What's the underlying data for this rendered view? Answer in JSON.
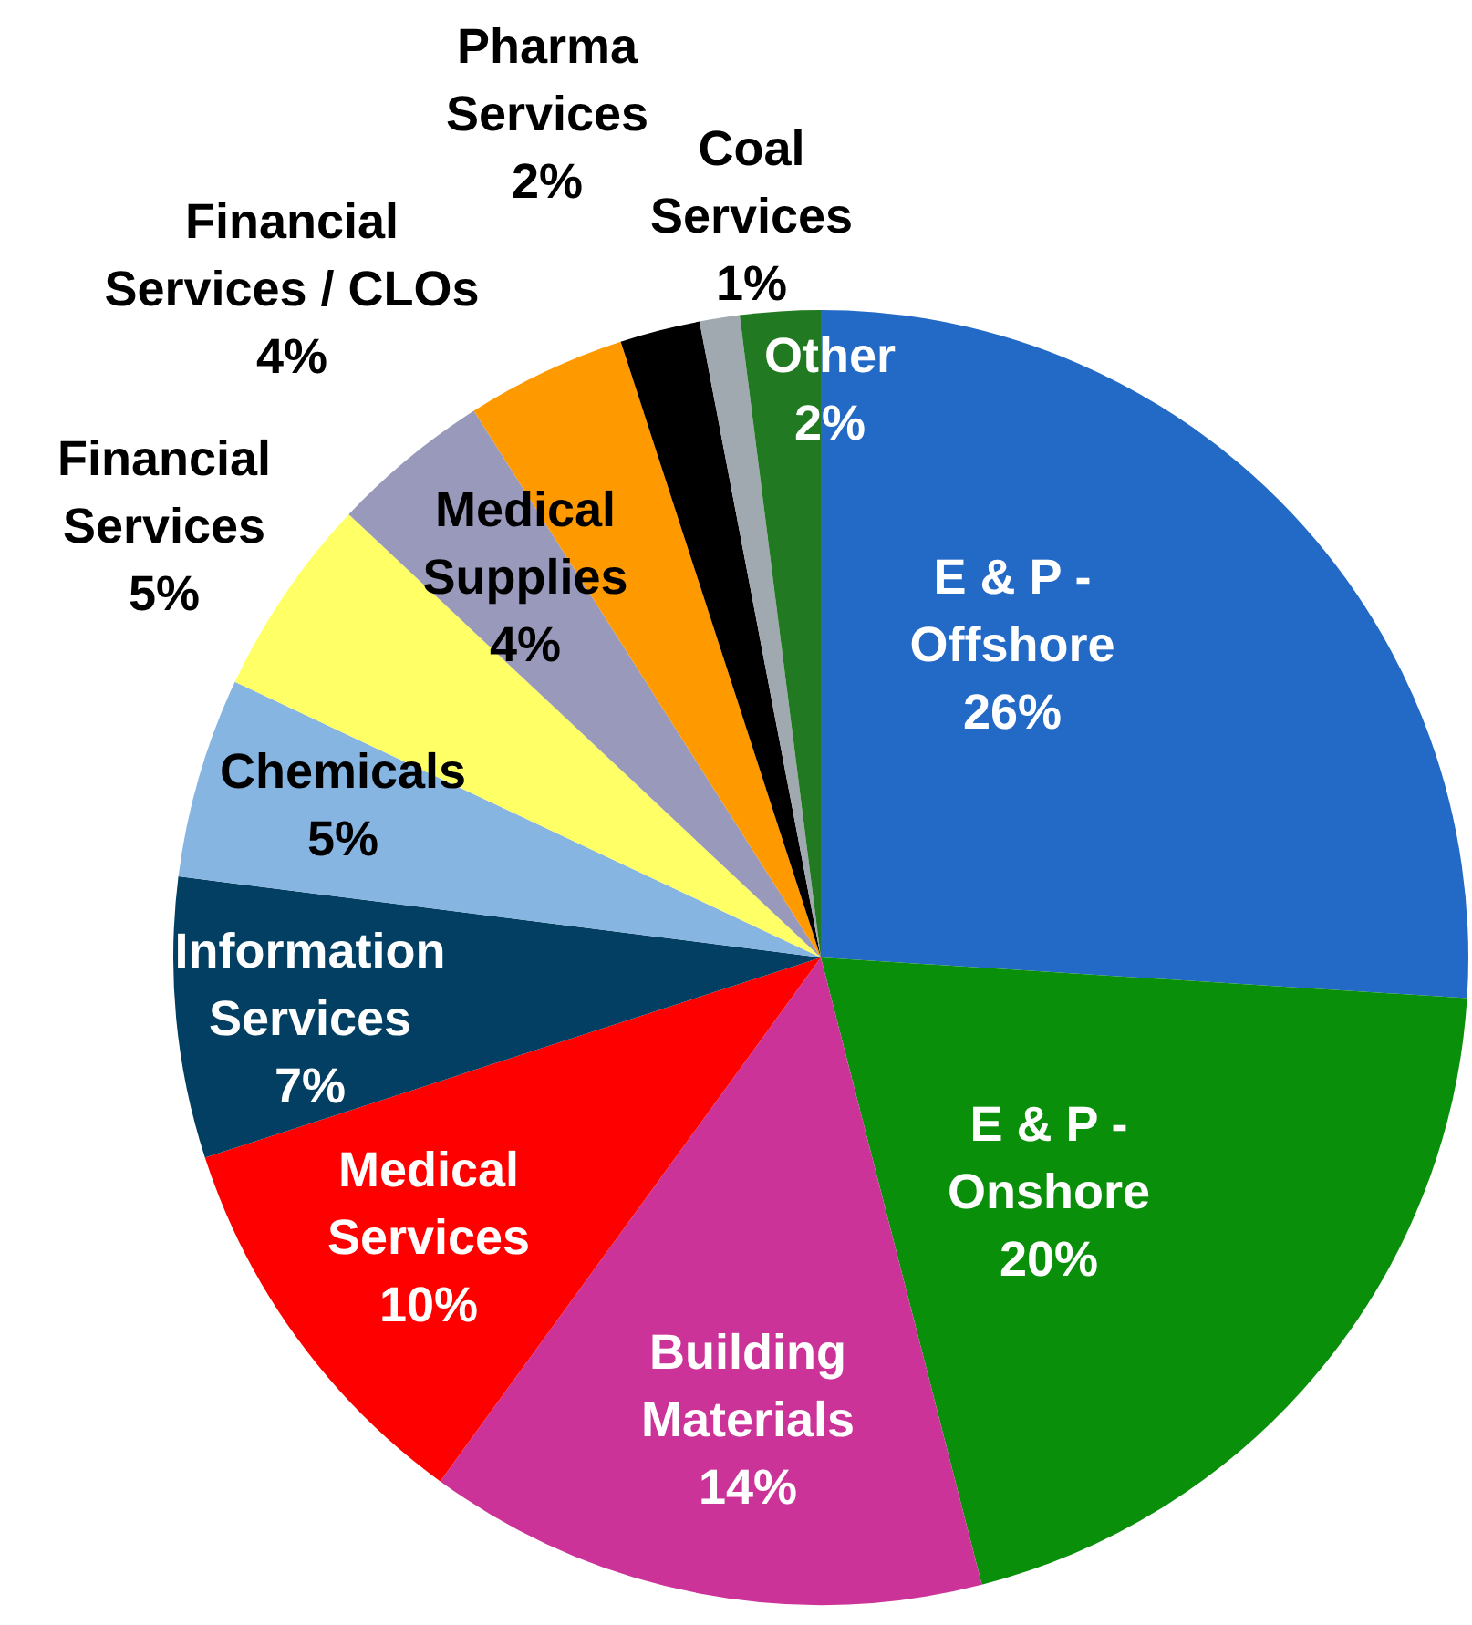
{
  "chart_data": {
    "type": "pie",
    "categories": [
      "E & P - Offshore",
      "E & P - Onshore",
      "Building Materials",
      "Medical Services",
      "Information Services",
      "Chemicals",
      "Financial Services",
      "Medical Supplies",
      "Financial Services / CLOs",
      "Pharma Services",
      "Coal Services",
      "Other"
    ],
    "values": [
      26,
      20,
      14,
      10,
      7,
      5,
      5,
      4,
      4,
      2,
      1,
      2
    ],
    "value_labels": [
      "26%",
      "20%",
      "14%",
      "10%",
      "7%",
      "5%",
      "5%",
      "4%",
      "4%",
      "2%",
      "1%",
      "2%"
    ],
    "colors": [
      "#2369c6",
      "#0a8f0a",
      "#cc3399",
      "#ff0000",
      "#033f63",
      "#85b5e0",
      "#ffff66",
      "#9999bb",
      "#ff9900",
      "#000000",
      "#a0a8b0",
      "#217a21"
    ],
    "legend": false
  }
}
